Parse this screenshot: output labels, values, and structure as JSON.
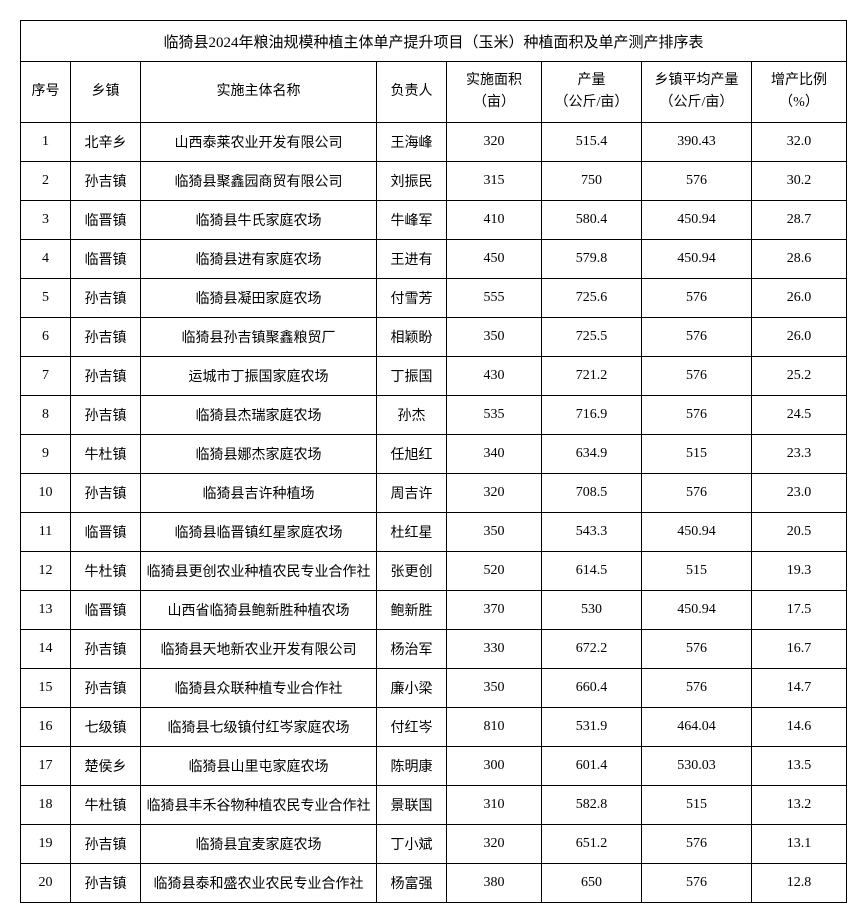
{
  "title": "临猗县2024年粮油规模种植主体单产提升项目（玉米）种植面积及单产测产排序表",
  "columns": {
    "seq": "序号",
    "town": "乡镇",
    "entity": "实施主体名称",
    "person": "负责人",
    "area_l1": "实施面积",
    "area_l2": "（亩）",
    "yield_l1": "产量",
    "yield_l2": "（公斤/亩）",
    "avg_l1": "乡镇平均产量",
    "avg_l2": "（公斤/亩）",
    "inc_l1": "增产比例",
    "inc_l2": "（%）"
  },
  "rows": [
    {
      "seq": "1",
      "town": "北辛乡",
      "entity": "山西泰莱农业开发有限公司",
      "person": "王海峰",
      "area": "320",
      "yield": "515.4",
      "avg": "390.43",
      "inc": "32.0"
    },
    {
      "seq": "2",
      "town": "孙吉镇",
      "entity": "临猗县聚鑫园商贸有限公司",
      "person": "刘振民",
      "area": "315",
      "yield": "750",
      "avg": "576",
      "inc": "30.2"
    },
    {
      "seq": "3",
      "town": "临晋镇",
      "entity": "临猗县牛氏家庭农场",
      "person": "牛峰军",
      "area": "410",
      "yield": "580.4",
      "avg": "450.94",
      "inc": "28.7"
    },
    {
      "seq": "4",
      "town": "临晋镇",
      "entity": "临猗县进有家庭农场",
      "person": "王进有",
      "area": "450",
      "yield": "579.8",
      "avg": "450.94",
      "inc": "28.6"
    },
    {
      "seq": "5",
      "town": "孙吉镇",
      "entity": "临猗县凝田家庭农场",
      "person": "付雪芳",
      "area": "555",
      "yield": "725.6",
      "avg": "576",
      "inc": "26.0"
    },
    {
      "seq": "6",
      "town": "孙吉镇",
      "entity": "临猗县孙吉镇聚鑫粮贸厂",
      "person": "相颖盼",
      "area": "350",
      "yield": "725.5",
      "avg": "576",
      "inc": "26.0"
    },
    {
      "seq": "7",
      "town": "孙吉镇",
      "entity": "运城市丁振国家庭农场",
      "person": "丁振国",
      "area": "430",
      "yield": "721.2",
      "avg": "576",
      "inc": "25.2"
    },
    {
      "seq": "8",
      "town": "孙吉镇",
      "entity": "临猗县杰瑞家庭农场",
      "person": "孙杰",
      "area": "535",
      "yield": "716.9",
      "avg": "576",
      "inc": "24.5"
    },
    {
      "seq": "9",
      "town": "牛杜镇",
      "entity": "临猗县娜杰家庭农场",
      "person": "任旭红",
      "area": "340",
      "yield": "634.9",
      "avg": "515",
      "inc": "23.3"
    },
    {
      "seq": "10",
      "town": "孙吉镇",
      "entity": "临猗县吉许种植场",
      "person": "周吉许",
      "area": "320",
      "yield": "708.5",
      "avg": "576",
      "inc": "23.0"
    },
    {
      "seq": "11",
      "town": "临晋镇",
      "entity": "临猗县临晋镇红星家庭农场",
      "person": "杜红星",
      "area": "350",
      "yield": "543.3",
      "avg": "450.94",
      "inc": "20.5"
    },
    {
      "seq": "12",
      "town": "牛杜镇",
      "entity": "临猗县更创农业种植农民专业合作社",
      "person": "张更创",
      "area": "520",
      "yield": "614.5",
      "avg": "515",
      "inc": "19.3"
    },
    {
      "seq": "13",
      "town": "临晋镇",
      "entity": "山西省临猗县鲍新胜种植农场",
      "person": "鲍新胜",
      "area": "370",
      "yield": "530",
      "avg": "450.94",
      "inc": "17.5"
    },
    {
      "seq": "14",
      "town": "孙吉镇",
      "entity": "临猗县天地新农业开发有限公司",
      "person": "杨治军",
      "area": "330",
      "yield": "672.2",
      "avg": "576",
      "inc": "16.7"
    },
    {
      "seq": "15",
      "town": "孙吉镇",
      "entity": "临猗县众联种植专业合作社",
      "person": "廉小梁",
      "area": "350",
      "yield": "660.4",
      "avg": "576",
      "inc": "14.7"
    },
    {
      "seq": "16",
      "town": "七级镇",
      "entity": "临猗县七级镇付红岑家庭农场",
      "person": "付红岑",
      "area": "810",
      "yield": "531.9",
      "avg": "464.04",
      "inc": "14.6"
    },
    {
      "seq": "17",
      "town": "楚侯乡",
      "entity": "临猗县山里屯家庭农场",
      "person": "陈明康",
      "area": "300",
      "yield": "601.4",
      "avg": "530.03",
      "inc": "13.5"
    },
    {
      "seq": "18",
      "town": "牛杜镇",
      "entity": "临猗县丰禾谷物种植农民专业合作社",
      "person": "景联国",
      "area": "310",
      "yield": "582.8",
      "avg": "515",
      "inc": "13.2"
    },
    {
      "seq": "19",
      "town": "孙吉镇",
      "entity": "临猗县宜麦家庭农场",
      "person": "丁小斌",
      "area": "320",
      "yield": "651.2",
      "avg": "576",
      "inc": "13.1"
    },
    {
      "seq": "20",
      "town": "孙吉镇",
      "entity": "临猗县泰和盛农业农民专业合作社",
      "person": "杨富强",
      "area": "380",
      "yield": "650",
      "avg": "576",
      "inc": "12.8"
    }
  ]
}
